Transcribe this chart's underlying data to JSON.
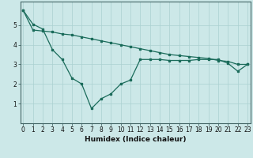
{
  "xlabel": "Humidex (Indice chaleur)",
  "background_color": "#cce8e8",
  "grid_color": "#aad0d0",
  "line_color": "#1a6b5a",
  "line1_x": [
    0,
    1,
    2,
    3,
    4,
    5,
    6,
    7,
    8,
    9,
    10,
    11,
    12,
    13,
    14,
    15,
    16,
    17,
    18,
    19,
    20,
    21,
    22,
    23
  ],
  "line1_y": [
    5.75,
    5.05,
    4.8,
    3.75,
    3.25,
    2.3,
    2.0,
    0.75,
    1.25,
    1.5,
    2.0,
    2.2,
    3.25,
    3.25,
    3.25,
    3.2,
    3.2,
    3.2,
    3.25,
    3.25,
    3.25,
    3.05,
    2.65,
    3.0
  ],
  "line2_x": [
    0,
    1,
    2,
    3,
    4,
    5,
    6,
    7,
    8,
    9,
    10,
    11,
    12,
    13,
    14,
    15,
    16,
    17,
    18,
    19,
    20,
    21,
    22,
    23
  ],
  "line2_y": [
    5.75,
    4.75,
    4.7,
    4.65,
    4.55,
    4.5,
    4.4,
    4.3,
    4.2,
    4.1,
    4.0,
    3.9,
    3.8,
    3.7,
    3.6,
    3.5,
    3.45,
    3.4,
    3.35,
    3.3,
    3.2,
    3.15,
    3.0,
    3.0
  ],
  "xlim": [
    0,
    23
  ],
  "ylim": [
    0,
    6.2
  ],
  "yticks": [
    1,
    2,
    3,
    4,
    5
  ],
  "xticks": [
    0,
    1,
    2,
    3,
    4,
    5,
    6,
    7,
    8,
    9,
    10,
    11,
    12,
    13,
    14,
    15,
    16,
    17,
    18,
    19,
    20,
    21,
    22,
    23
  ],
  "xlabel_fontsize": 6.5,
  "tick_fontsize": 5.5,
  "linewidth": 0.9,
  "markersize": 2.0
}
